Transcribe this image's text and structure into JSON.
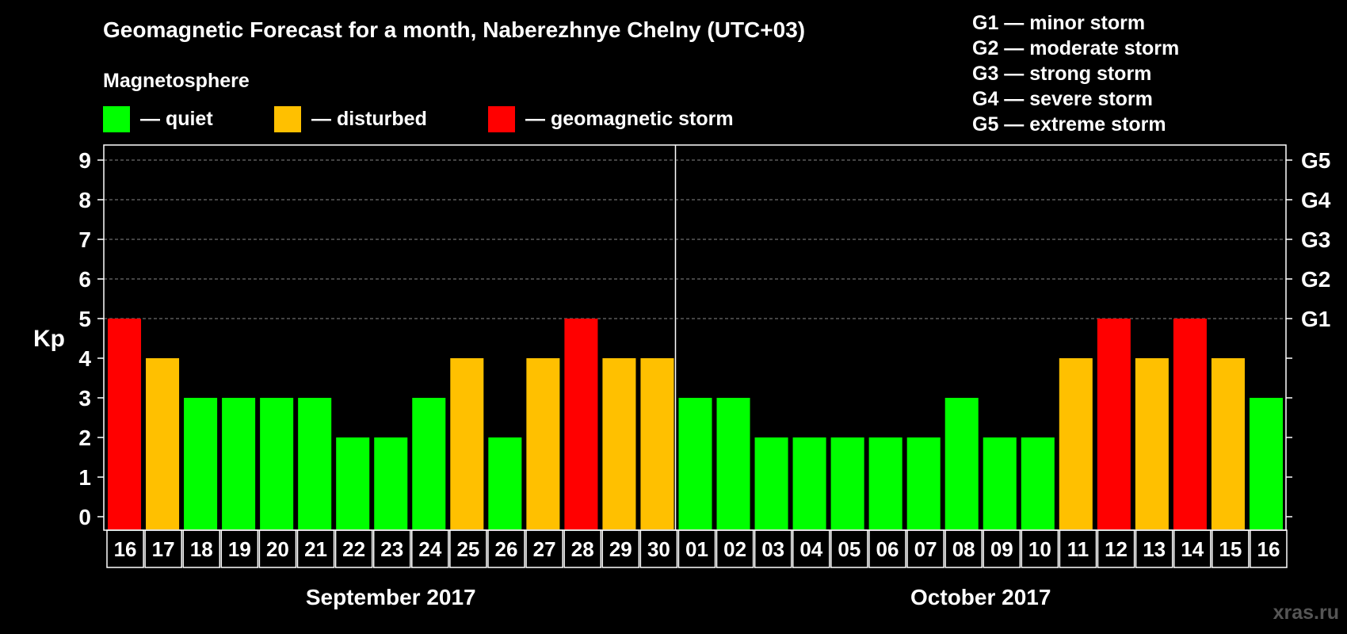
{
  "chart_data": {
    "type": "bar",
    "title": "Geomagnetic Forecast for a month, Naberezhnye Chelny (UTC+03)",
    "ylabel": "Kp",
    "ylim": [
      0,
      9
    ],
    "yticks": [
      "0",
      "1",
      "2",
      "3",
      "4",
      "5",
      "6",
      "7",
      "8",
      "9"
    ],
    "right_axis_labels": [
      {
        "kp": 5,
        "label": "G1"
      },
      {
        "kp": 6,
        "label": "G2"
      },
      {
        "kp": 7,
        "label": "G3"
      },
      {
        "kp": 8,
        "label": "G4"
      },
      {
        "kp": 9,
        "label": "G5"
      }
    ],
    "legend_title": "Magnetosphere",
    "legend": [
      {
        "label": "— quiet",
        "color": "#00ff00"
      },
      {
        "label": "— disturbed",
        "color": "#ffc000"
      },
      {
        "label": "— geomagnetic storm",
        "color": "#ff0000"
      }
    ],
    "storm_scale": [
      "G1 — minor storm",
      "G2 — moderate storm",
      "G3 — strong storm",
      "G4 — severe storm",
      "G5 — extreme storm"
    ],
    "categories": [
      "16",
      "17",
      "18",
      "19",
      "20",
      "21",
      "22",
      "23",
      "24",
      "25",
      "26",
      "27",
      "28",
      "29",
      "30",
      "01",
      "02",
      "03",
      "04",
      "05",
      "06",
      "07",
      "08",
      "09",
      "10",
      "11",
      "12",
      "13",
      "14",
      "15",
      "16"
    ],
    "values": [
      5,
      4,
      3,
      3,
      3,
      3,
      2,
      2,
      3,
      4,
      2,
      4,
      5,
      4,
      4,
      3,
      3,
      2,
      2,
      2,
      2,
      2,
      3,
      2,
      2,
      4,
      5,
      4,
      5,
      4,
      3
    ],
    "months": [
      {
        "label": "September 2017",
        "count": 15
      },
      {
        "label": "October 2017",
        "count": 16
      }
    ],
    "colors": {
      "quiet": "#00ff00",
      "disturbed": "#ffc000",
      "storm": "#ff0000"
    },
    "grid": true
  },
  "watermark": "xras.ru"
}
